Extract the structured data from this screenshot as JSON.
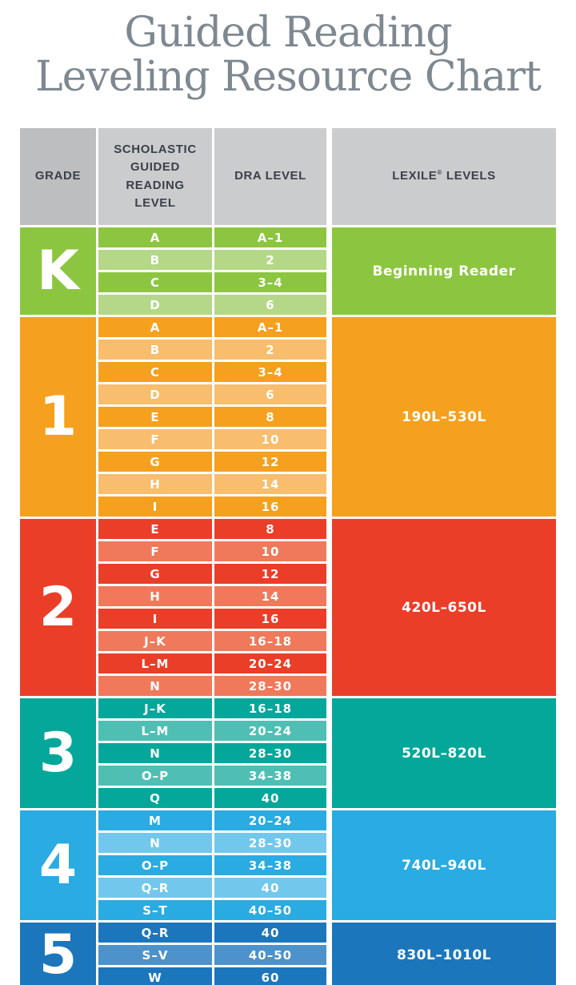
{
  "title": {
    "line1": "Guided Reading",
    "line2": "Leveling Resource Chart",
    "color": "#7e8891"
  },
  "header": {
    "grade": "GRADE",
    "scholastic": "SCHOLASTIC\nGUIDED\nREADING\nLEVEL",
    "dra": "DRA LEVEL",
    "lexile_name": "LEXILE",
    "lexile_mark": "®",
    "lexile_suffix": "LEVELS",
    "grade_bg": "#bcbec0",
    "other_bg": "#cbccce",
    "text_color": "#3b4149"
  },
  "sections": [
    {
      "grade": "K",
      "lexile": "Beginning Reader",
      "color_main": "#8cc640",
      "color_light": "#b4d887",
      "rows": [
        {
          "guided": "A",
          "dra": "A–1"
        },
        {
          "guided": "B",
          "dra": "2"
        },
        {
          "guided": "C",
          "dra": "3–4"
        },
        {
          "guided": "D",
          "dra": "6"
        }
      ]
    },
    {
      "grade": "1",
      "lexile": "190L–530L",
      "color_main": "#f5a01e",
      "color_light": "#f8bd6d",
      "rows": [
        {
          "guided": "A",
          "dra": "A–1"
        },
        {
          "guided": "B",
          "dra": "2"
        },
        {
          "guided": "C",
          "dra": "3–4"
        },
        {
          "guided": "D",
          "dra": "6"
        },
        {
          "guided": "E",
          "dra": "8"
        },
        {
          "guided": "F",
          "dra": "10"
        },
        {
          "guided": "G",
          "dra": "12"
        },
        {
          "guided": "H",
          "dra": "14"
        },
        {
          "guided": "I",
          "dra": "16"
        }
      ]
    },
    {
      "grade": "2",
      "lexile": "420L–650L",
      "color_main": "#ea3e28",
      "color_light": "#f0795b",
      "rows": [
        {
          "guided": "E",
          "dra": "8"
        },
        {
          "guided": "F",
          "dra": "10"
        },
        {
          "guided": "G",
          "dra": "12"
        },
        {
          "guided": "H",
          "dra": "14"
        },
        {
          "guided": "I",
          "dra": "16"
        },
        {
          "guided": "J–K",
          "dra": "16–18"
        },
        {
          "guided": "L–M",
          "dra": "20–24"
        },
        {
          "guided": "N",
          "dra": "28–30"
        }
      ]
    },
    {
      "grade": "3",
      "lexile": "520L–820L",
      "color_main": "#05a79a",
      "color_light": "#4fbfb3",
      "rows": [
        {
          "guided": "J–K",
          "dra": "16–18"
        },
        {
          "guided": "L–M",
          "dra": "20–24"
        },
        {
          "guided": "N",
          "dra": "28–30"
        },
        {
          "guided": "O–P",
          "dra": "34–38"
        },
        {
          "guided": "Q",
          "dra": "40"
        }
      ]
    },
    {
      "grade": "4",
      "lexile": "740L–940L",
      "color_main": "#2aabe2",
      "color_light": "#72c8ec",
      "rows": [
        {
          "guided": "M",
          "dra": "20–24"
        },
        {
          "guided": "N",
          "dra": "28–30"
        },
        {
          "guided": "O–P",
          "dra": "34–38"
        },
        {
          "guided": "Q–R",
          "dra": "40"
        },
        {
          "guided": "S–T",
          "dra": "40–50"
        }
      ]
    },
    {
      "grade": "5",
      "lexile": "830L–1010L",
      "color_main": "#1c76bc",
      "color_light": "#4d92cb",
      "rows": [
        {
          "guided": "Q–R",
          "dra": "40"
        },
        {
          "guided": "S–V",
          "dra": "40–50"
        },
        {
          "guided": "W",
          "dra": "60"
        }
      ]
    }
  ]
}
